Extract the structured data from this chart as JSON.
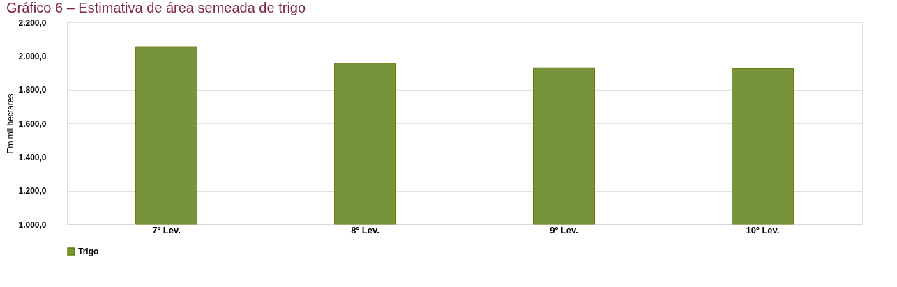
{
  "chart_data": {
    "type": "bar",
    "title": "Gráfico 6 – Estimativa de área semeada de trigo",
    "ylabel": "Em mil hectares",
    "categories": [
      "7º Lev.",
      "8º Lev.",
      "9º Lev.",
      "10º Lev."
    ],
    "series": [
      {
        "name": "Trigo",
        "color": "#77933c",
        "values": [
          2055,
          1955,
          1930,
          1925
        ]
      }
    ],
    "ylim": [
      1000,
      2200
    ],
    "yticks": [
      {
        "value": 1000,
        "label": "1.000,0"
      },
      {
        "value": 1200,
        "label": "1.200,0"
      },
      {
        "value": 1400,
        "label": "1.400,0"
      },
      {
        "value": 1600,
        "label": "1.600,0"
      },
      {
        "value": 1800,
        "label": "1.800,0"
      },
      {
        "value": 2000,
        "label": "2.000,0"
      },
      {
        "value": 2200,
        "label": "2.200,0"
      }
    ],
    "grid": "y",
    "legend": "bottom"
  }
}
